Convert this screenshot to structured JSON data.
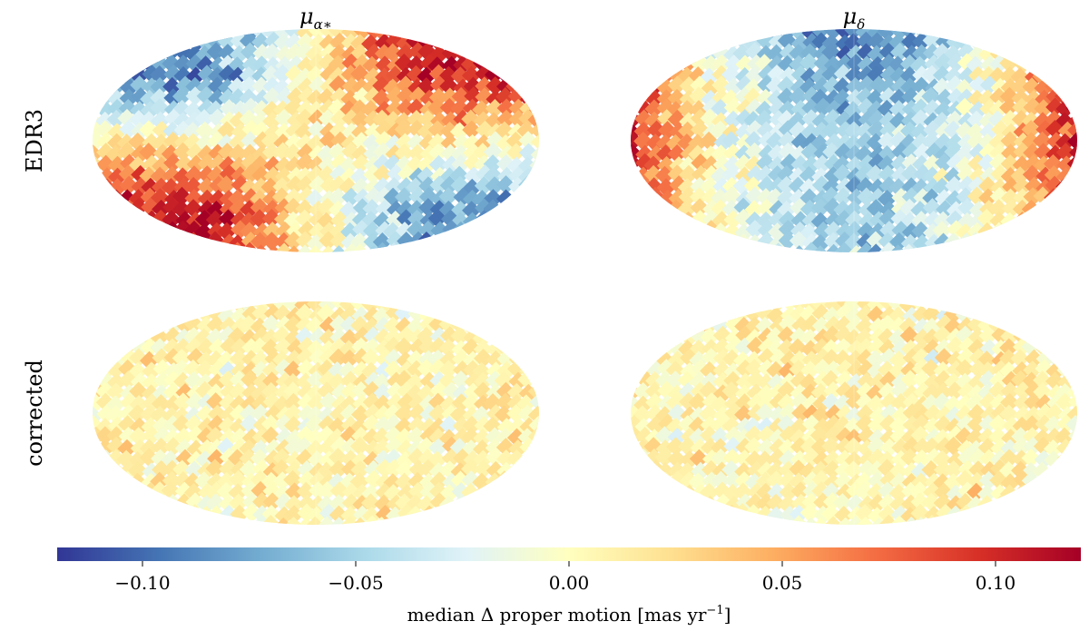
{
  "chart_data": {
    "type": "heatmap",
    "projection": "mollweide",
    "columns": [
      {
        "symbol": "μ",
        "subscript": "α∗"
      },
      {
        "symbol": "μ",
        "subscript": "δ"
      }
    ],
    "rows": [
      "EDR3",
      "corrected"
    ],
    "panels": [
      {
        "row": "EDR3",
        "column": "μα∗",
        "pattern": "dipole: blue upper-left / lower-right, red upper-right / lower-left",
        "amplitude": 0.09
      },
      {
        "row": "EDR3",
        "column": "μδ",
        "pattern": "red at left and right edges, blue in centre",
        "amplitude": 0.1
      },
      {
        "row": "corrected",
        "column": "μα∗",
        "pattern": "residual noise around zero",
        "amplitude": 0.03
      },
      {
        "row": "corrected",
        "column": "μδ",
        "pattern": "residual noise around zero",
        "amplitude": 0.03
      }
    ],
    "colorbar": {
      "colormap": "RdYlBu_r",
      "min": -0.12,
      "max": 0.12,
      "ticks": [
        -0.1,
        -0.05,
        0.0,
        0.05,
        0.1
      ],
      "tick_labels": [
        "−0.10",
        "−0.05",
        "0.00",
        "0.05",
        "0.10"
      ],
      "label_prefix": "median Δ proper motion [mas yr",
      "label_exponent": "−1",
      "label_suffix": "]"
    }
  }
}
